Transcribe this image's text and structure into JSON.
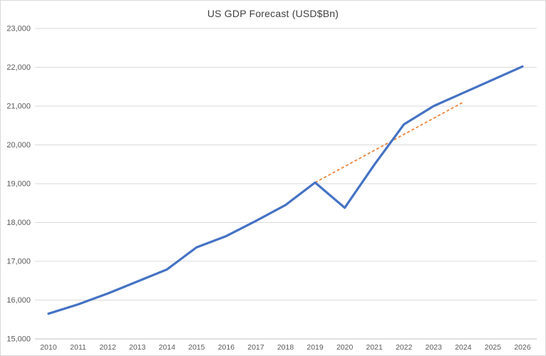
{
  "chart_data": {
    "type": "line",
    "title": "US GDP Forecast (USD$Bn)",
    "categories": [
      "2010",
      "2011",
      "2012",
      "2013",
      "2014",
      "2015",
      "2016",
      "2017",
      "2018",
      "2019",
      "2020",
      "2021",
      "2022",
      "2023",
      "2024",
      "2025",
      "2026"
    ],
    "series": [
      {
        "name": "GDP",
        "color": "#4472c4",
        "style": "solid",
        "stroke_width": 3.2,
        "values": [
          15650,
          15890,
          16170,
          16480,
          16790,
          17360,
          17650,
          18040,
          18450,
          19030,
          18380,
          19490,
          20530,
          21000,
          21340,
          21680,
          22020
        ]
      }
    ],
    "trendline": {
      "name": "forecast-trend",
      "color": "#ed7d31",
      "style": "dashed",
      "stroke_width": 1.7,
      "start_category": "2019",
      "start_value": 19030,
      "end_category": "2024",
      "end_value": 21100
    },
    "ylim": [
      15000,
      23000
    ],
    "ytick_step": 1000,
    "xlabel": "",
    "ylabel": "",
    "grid": "horizontal",
    "legend": "none",
    "colors": {
      "gridline": "#d9d9d9",
      "axis_line": "#bfbfbf",
      "tick_text": "#595959",
      "title_text": "#404040",
      "background": "#ffffff"
    }
  }
}
